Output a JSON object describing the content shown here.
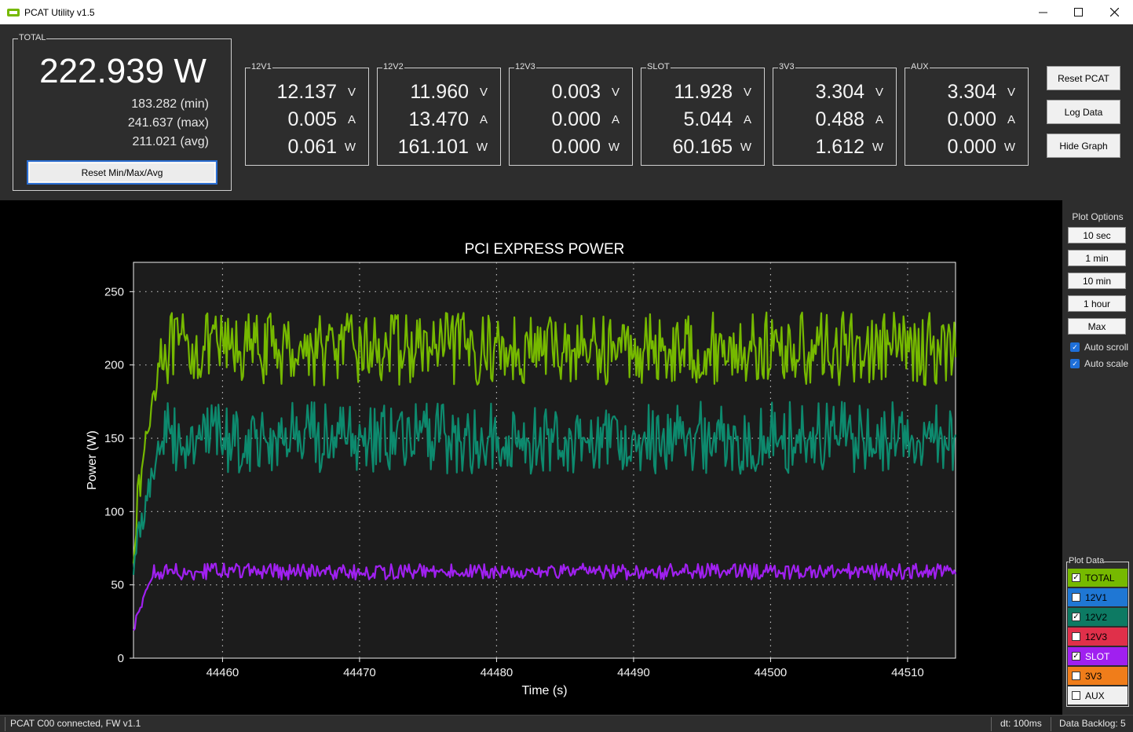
{
  "window": {
    "title": "PCAT Utility v1.5"
  },
  "total": {
    "label": "TOTAL",
    "power": "222.939 W",
    "min": "183.282 (min)",
    "max": "241.637 (max)",
    "avg": "211.021 (avg)",
    "reset_label": "Reset Min/Max/Avg"
  },
  "rails": [
    {
      "label": "12V1",
      "v": "12.137",
      "a": "0.005",
      "w": "0.061"
    },
    {
      "label": "12V2",
      "v": "11.960",
      "a": "13.470",
      "w": "161.101"
    },
    {
      "label": "12V3",
      "v": "0.003",
      "a": "0.000",
      "w": "0.000"
    },
    {
      "label": "SLOT",
      "v": "11.928",
      "a": "5.044",
      "w": "60.165"
    },
    {
      "label": "3V3",
      "v": "3.304",
      "a": "0.488",
      "w": "1.612"
    },
    {
      "label": "AUX",
      "v": "3.304",
      "a": "0.000",
      "w": "0.000"
    }
  ],
  "units": {
    "v": "V",
    "a": "A",
    "w": "W"
  },
  "buttons": {
    "reset_pcat": "Reset PCAT",
    "log_data": "Log Data",
    "hide_graph": "Hide Graph"
  },
  "plot_options": {
    "title": "Plot Options",
    "ranges": [
      "10 sec",
      "1 min",
      "10 min",
      "1 hour",
      "Max"
    ],
    "auto_scroll": "Auto scroll",
    "auto_scale": "Auto scale"
  },
  "plot_data": {
    "title": "Plot Data",
    "items": [
      {
        "label": "TOTAL",
        "checked": true,
        "color": "#76b900",
        "text": "#000000"
      },
      {
        "label": "12V1",
        "checked": false,
        "color": "#1f77d4",
        "text": "#000000"
      },
      {
        "label": "12V2",
        "checked": true,
        "color": "#0d7a63",
        "text": "#000000"
      },
      {
        "label": "12V3",
        "checked": false,
        "color": "#e0304a",
        "text": "#000000"
      },
      {
        "label": "SLOT",
        "checked": true,
        "color": "#a020f0",
        "text": "#ffffff"
      },
      {
        "label": "3V3",
        "checked": false,
        "color": "#f07d1a",
        "text": "#000000"
      },
      {
        "label": "AUX",
        "checked": false,
        "color": "#f0f0f0",
        "text": "#000000"
      }
    ]
  },
  "status": {
    "connection": "PCAT C00 connected, FW v1.1",
    "dt": "dt: 100ms",
    "backlog": "Data Backlog: 5"
  },
  "chart_data": {
    "type": "line",
    "title": "PCI EXPRESS POWER",
    "xlabel": "Time (s)",
    "ylabel": "Power (W)",
    "xlim": [
      44453.5,
      44513.5
    ],
    "ylim": [
      0,
      270
    ],
    "xticks": [
      44460,
      44470,
      44480,
      44490,
      44500,
      44510
    ],
    "yticks": [
      0,
      50,
      100,
      150,
      200,
      250
    ],
    "grid": true,
    "series": [
      {
        "name": "TOTAL",
        "color": "#76b900",
        "x_start": 44453.5,
        "x_end": 44513.5,
        "ramp_end": 44455.5,
        "start": 75,
        "mean": 211,
        "min": 183,
        "max": 242
      },
      {
        "name": "12V2",
        "color": "#0d8a6e",
        "x_start": 44453.5,
        "x_end": 44513.5,
        "ramp_end": 44455.5,
        "start": 60,
        "mean": 150,
        "min": 122,
        "max": 181
      },
      {
        "name": "SLOT",
        "color": "#a020f0",
        "x_start": 44453.5,
        "x_end": 44513.5,
        "ramp_end": 44455.0,
        "start": 18,
        "mean": 59,
        "min": 53,
        "max": 66
      }
    ]
  }
}
